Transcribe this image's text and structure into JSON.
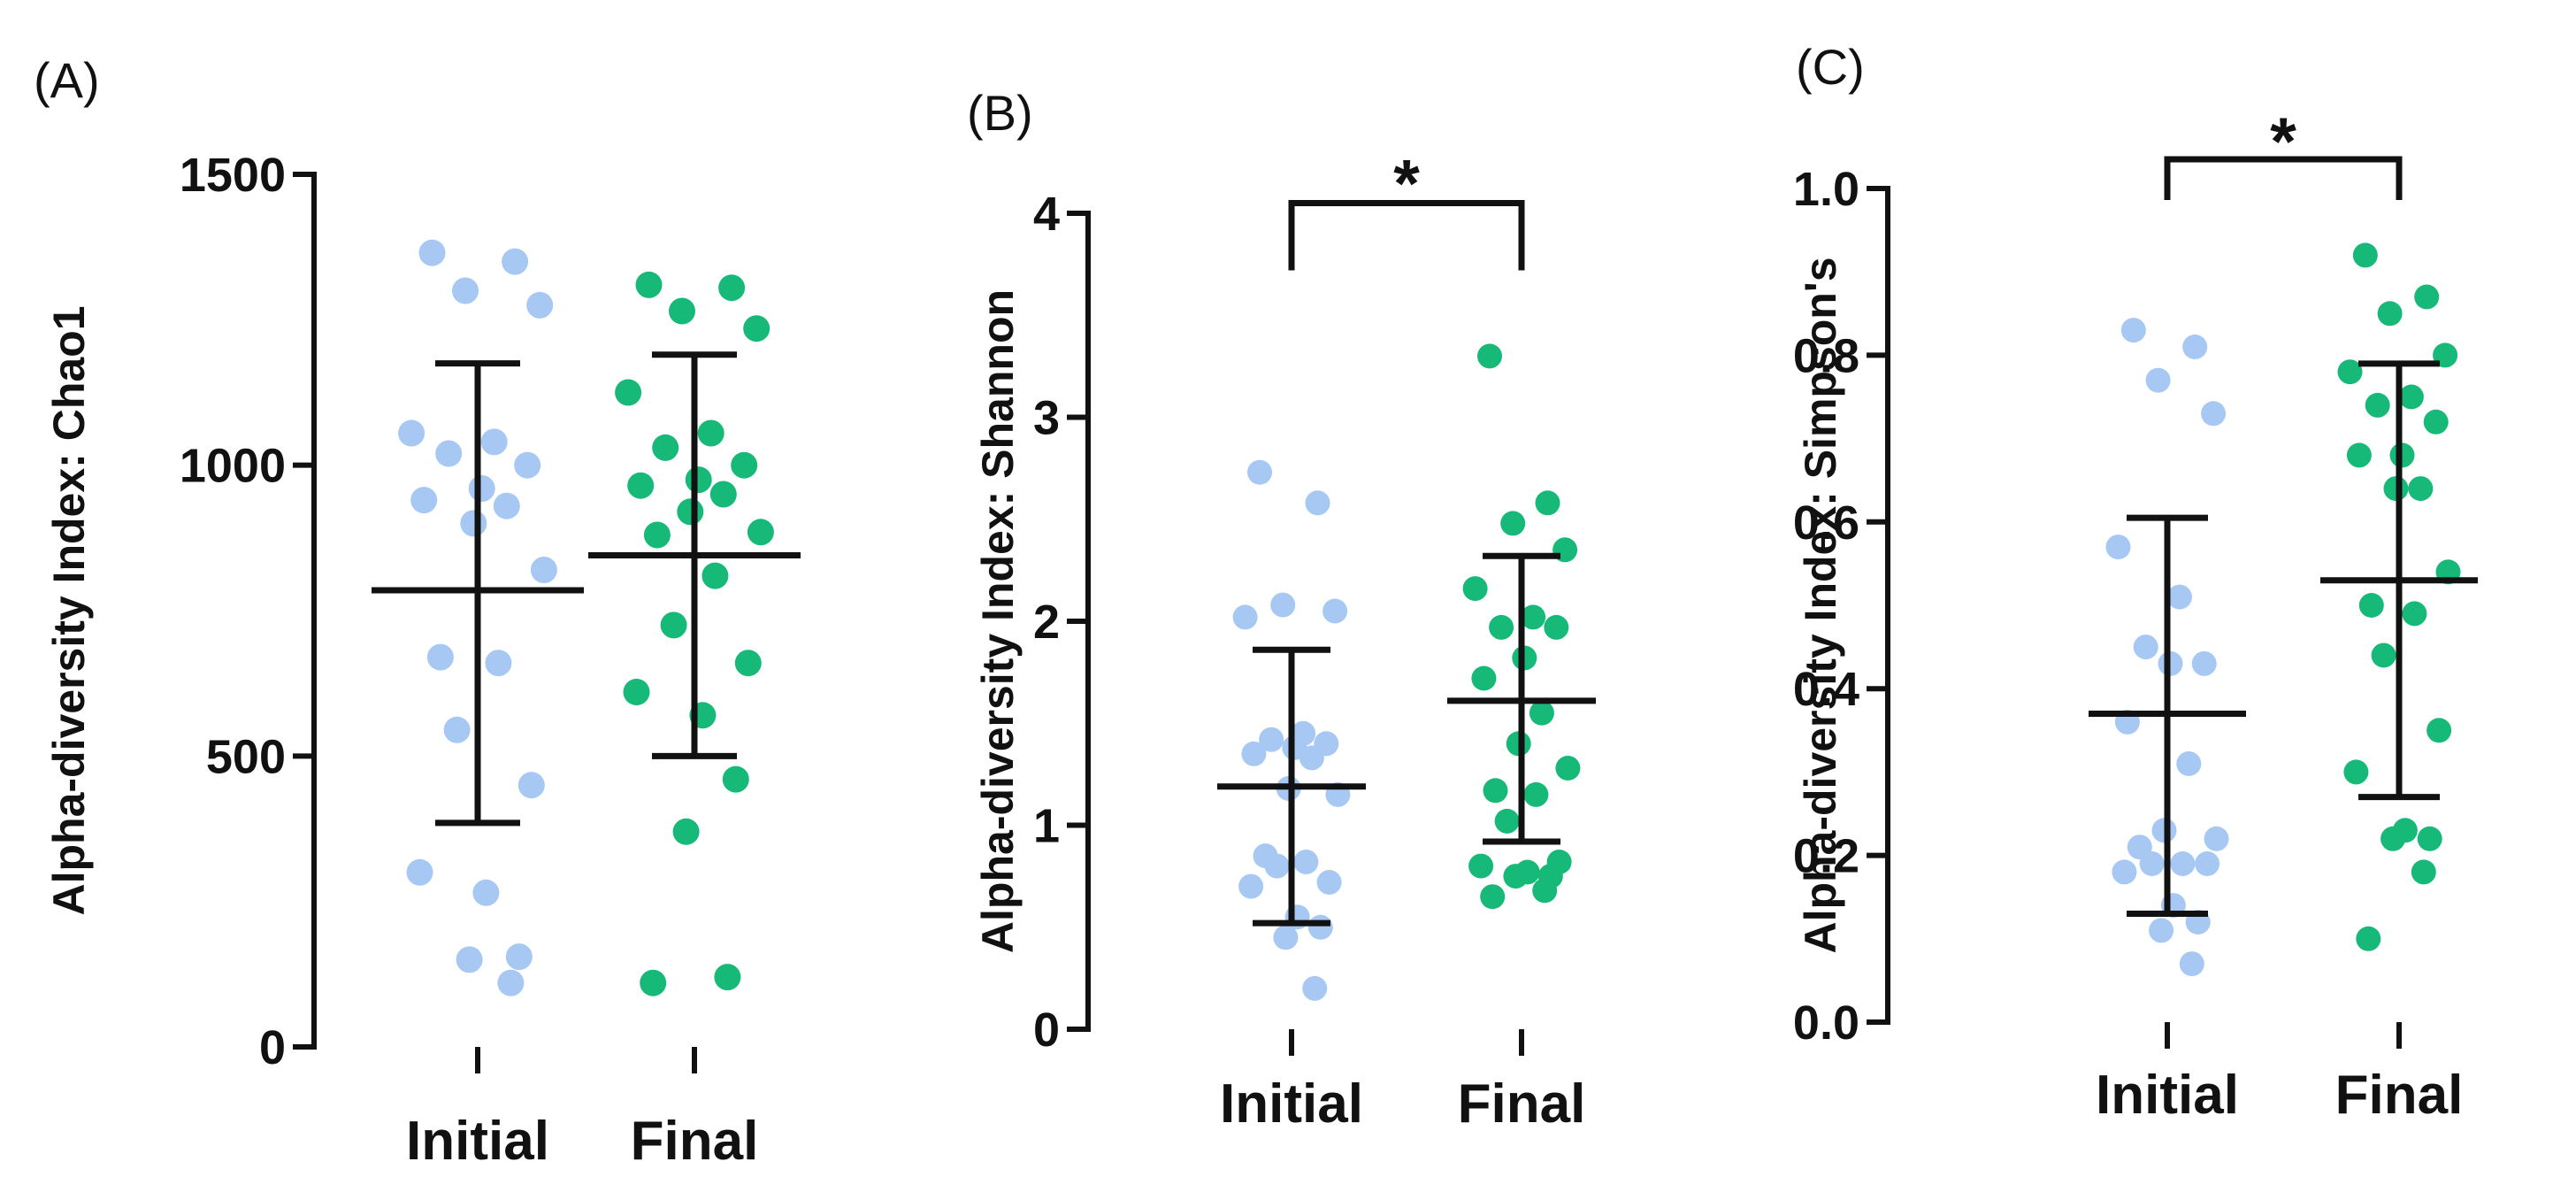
{
  "colors": {
    "initial": "#a6c8f2",
    "final": "#17b978",
    "ink": "#111111"
  },
  "chart_data": [
    {
      "type": "scatter",
      "panel_label": "(A)",
      "title": "",
      "xlabel": "",
      "ylabel": "Alpha-diversity Index: Chao1",
      "categories": [
        "Initial",
        "Final"
      ],
      "ylim": [
        0,
        1500
      ],
      "yticks": [
        0,
        500,
        1000,
        1500
      ],
      "ytick_labels": [
        "0",
        "500",
        "1000",
        "1500"
      ],
      "series": [
        {
          "name": "Initial",
          "mean": 785,
          "sd_low": 385,
          "sd_high": 1175,
          "points": [
            1365,
            1350,
            1300,
            1275,
            1055,
            1040,
            1020,
            1000,
            960,
            940,
            930,
            900,
            820,
            670,
            660,
            545,
            450,
            300,
            265,
            155,
            150,
            110
          ]
        },
        {
          "name": "Final",
          "mean": 845,
          "sd_low": 500,
          "sd_high": 1190,
          "points": [
            1310,
            1305,
            1265,
            1235,
            1125,
            1055,
            1030,
            1000,
            975,
            965,
            950,
            920,
            885,
            880,
            810,
            725,
            660,
            610,
            570,
            460,
            370,
            120,
            110
          ]
        }
      ],
      "significance": null
    },
    {
      "type": "scatter",
      "panel_label": "(B)",
      "title": "",
      "xlabel": "",
      "ylabel": "Alpha-diversity Index: Shannon",
      "categories": [
        "Initial",
        "Final"
      ],
      "ylim": [
        0,
        4
      ],
      "yticks": [
        0,
        1,
        2,
        3,
        4
      ],
      "ytick_labels": [
        "0",
        "1",
        "2",
        "3",
        "4"
      ],
      "series": [
        {
          "name": "Initial",
          "mean": 1.19,
          "sd_low": 0.52,
          "sd_high": 1.86,
          "points": [
            2.73,
            2.58,
            2.08,
            2.05,
            2.02,
            1.45,
            1.42,
            1.4,
            1.38,
            1.35,
            1.33,
            1.18,
            1.15,
            0.85,
            0.82,
            0.8,
            0.72,
            0.7,
            0.55,
            0.5,
            0.45,
            0.2
          ]
        },
        {
          "name": "Final",
          "mean": 1.61,
          "sd_low": 0.92,
          "sd_high": 2.32,
          "points": [
            3.3,
            2.58,
            2.48,
            2.35,
            2.16,
            2.02,
            1.97,
            1.97,
            1.82,
            1.72,
            1.55,
            1.4,
            1.28,
            1.17,
            1.15,
            1.02,
            0.82,
            0.8,
            0.77,
            0.75,
            0.75,
            0.68,
            0.65
          ]
        }
      ],
      "significance": {
        "label": "*",
        "between": [
          "Initial",
          "Final"
        ],
        "bracket_y": 4.05
      }
    },
    {
      "type": "scatter",
      "panel_label": "(C)",
      "title": "",
      "xlabel": "",
      "ylabel": "Alpha-diversity Index: Simpson's",
      "categories": [
        "Initial",
        "Final"
      ],
      "ylim": [
        0,
        1.0
      ],
      "yticks": [
        0.0,
        0.2,
        0.4,
        0.6,
        0.8,
        1.0
      ],
      "ytick_labels": [
        "0.0",
        "0.2",
        "0.4",
        "0.6",
        "0.8",
        "1.0"
      ],
      "series": [
        {
          "name": "Initial",
          "mean": 0.37,
          "sd_low": 0.13,
          "sd_high": 0.605,
          "points": [
            0.83,
            0.81,
            0.77,
            0.73,
            0.57,
            0.51,
            0.45,
            0.43,
            0.43,
            0.36,
            0.31,
            0.23,
            0.22,
            0.21,
            0.19,
            0.19,
            0.19,
            0.18,
            0.14,
            0.12,
            0.11,
            0.07
          ]
        },
        {
          "name": "Final",
          "mean": 0.53,
          "sd_low": 0.27,
          "sd_high": 0.79,
          "points": [
            0.92,
            0.87,
            0.85,
            0.8,
            0.78,
            0.75,
            0.74,
            0.72,
            0.68,
            0.68,
            0.64,
            0.64,
            0.54,
            0.5,
            0.49,
            0.44,
            0.35,
            0.3,
            0.23,
            0.22,
            0.22,
            0.18,
            0.1
          ]
        }
      ],
      "significance": {
        "label": "*",
        "between": [
          "Initial",
          "Final"
        ],
        "bracket_y": 1.035
      }
    }
  ]
}
